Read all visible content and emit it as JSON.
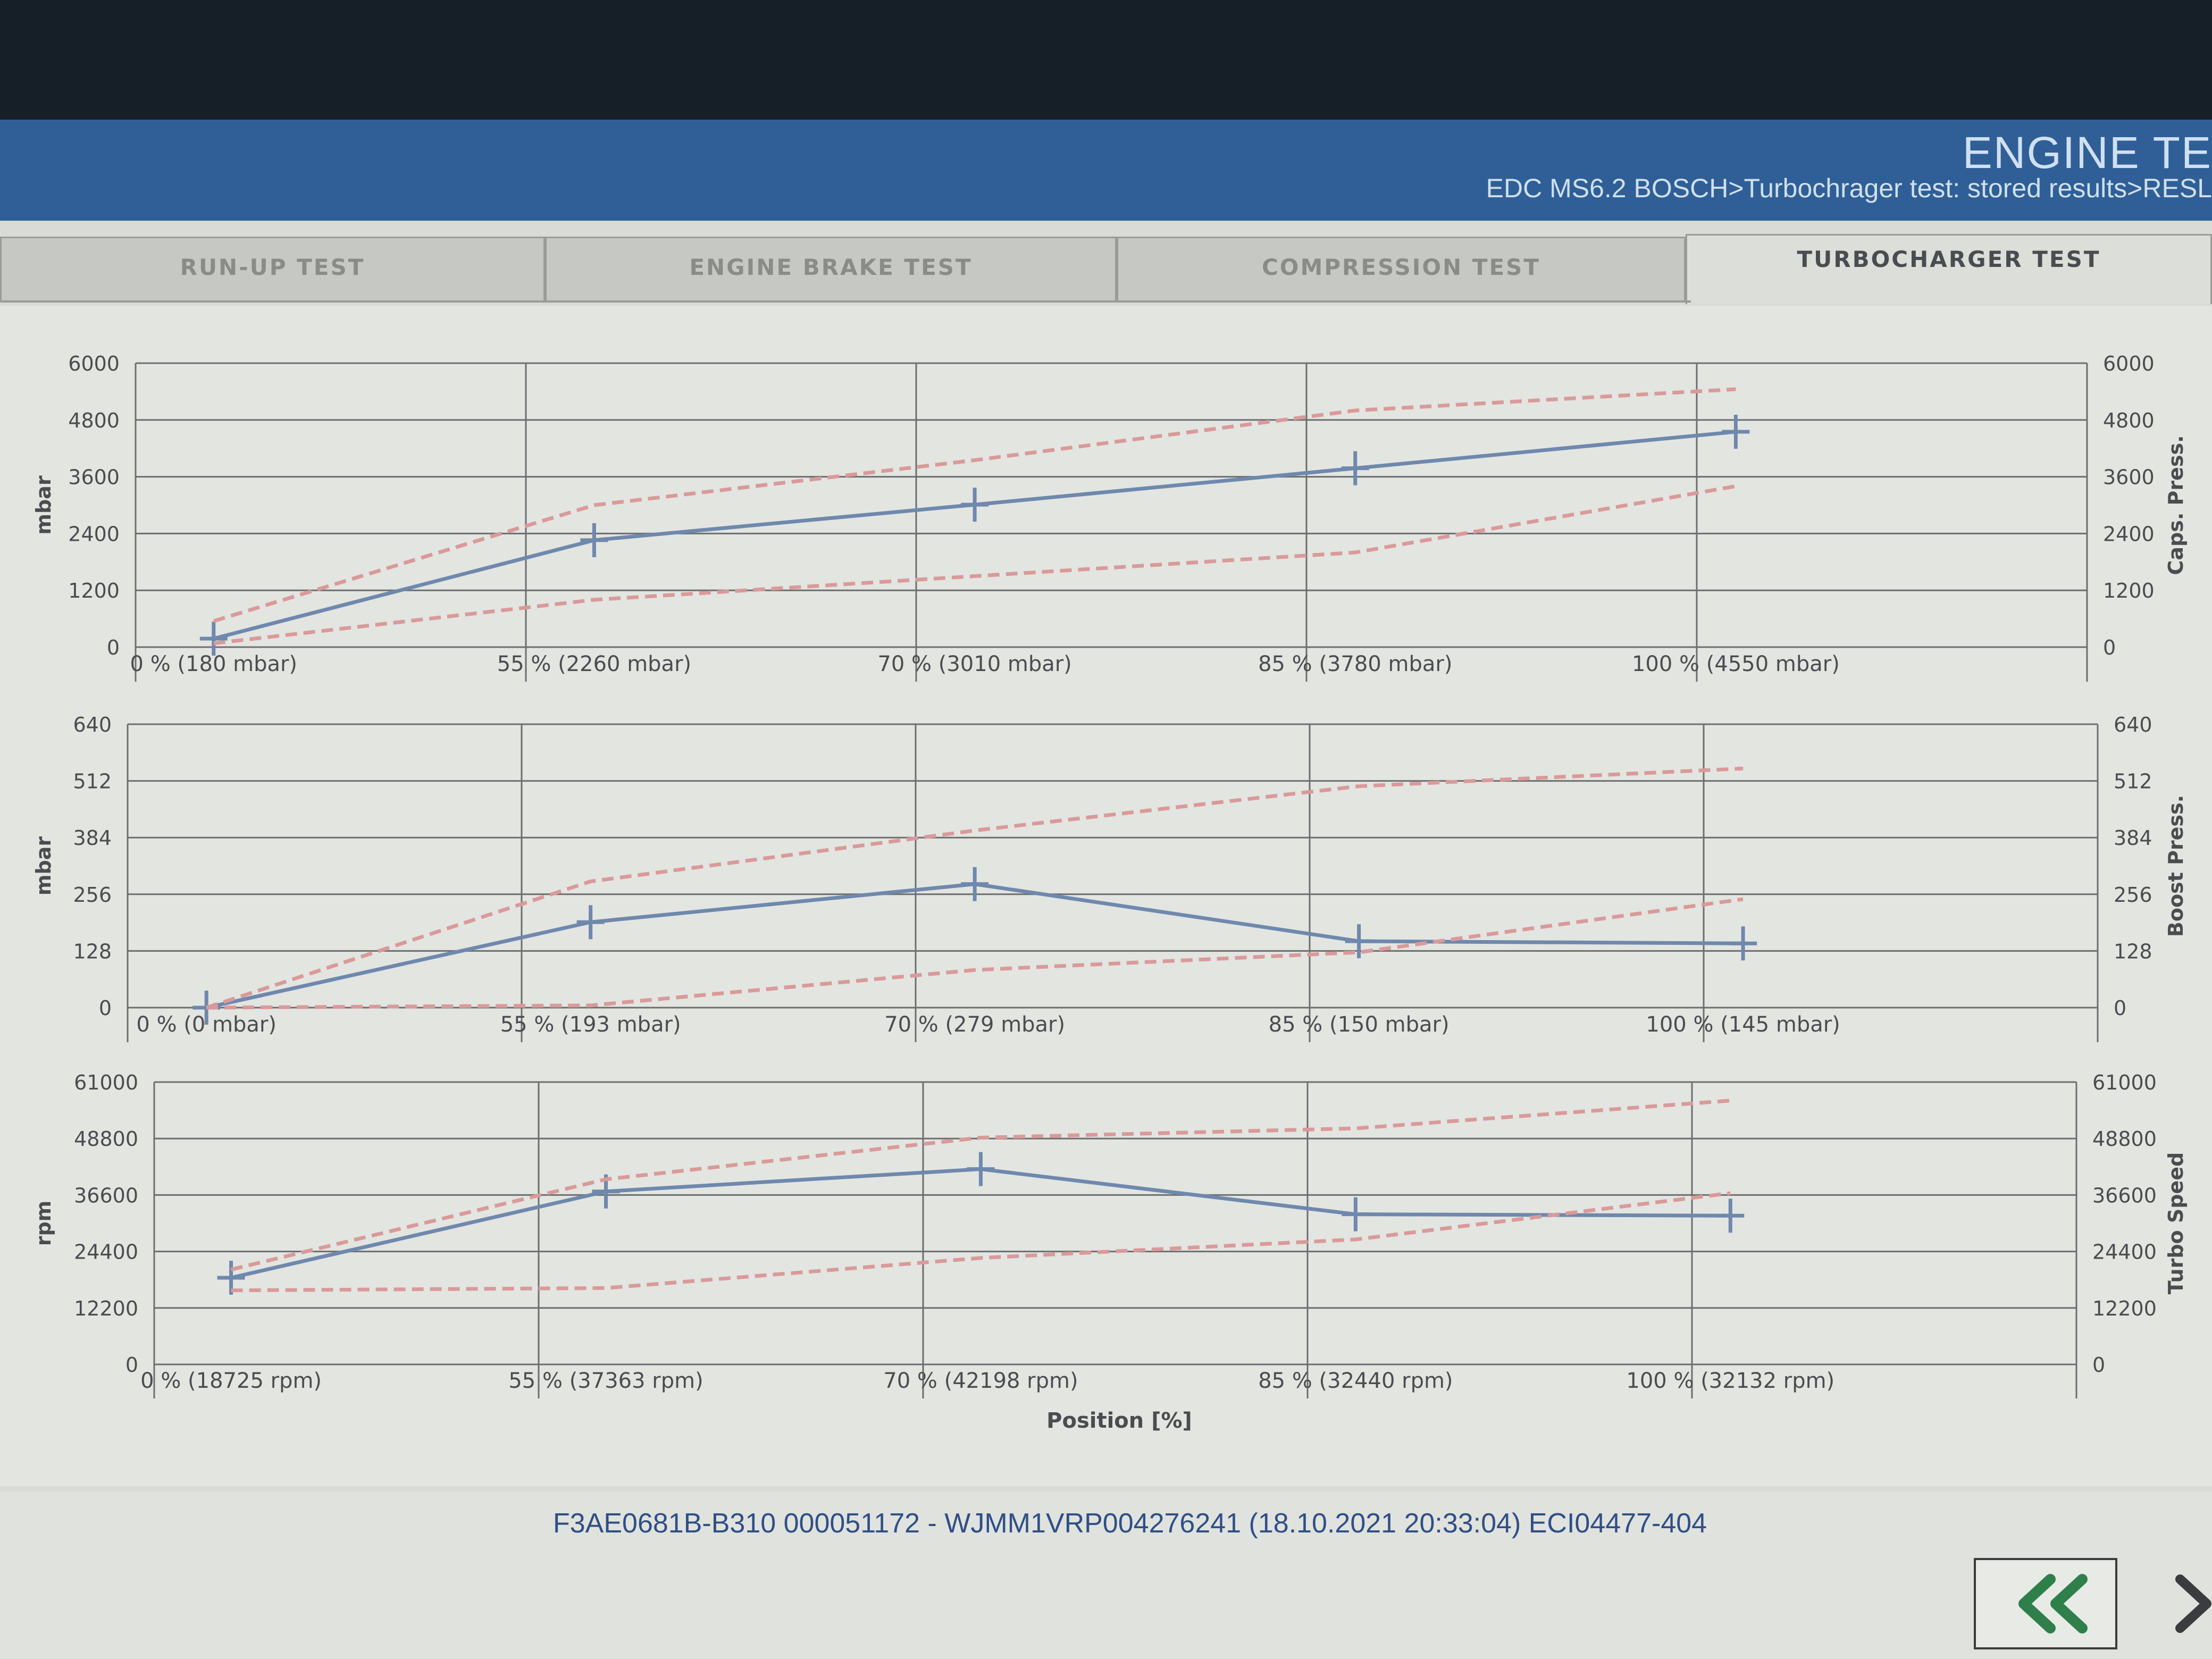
{
  "header": {
    "title": "ENGINE TE",
    "path": "EDC MS6.2 BOSCH>Turbochrager test: stored results>RESL"
  },
  "tabs": [
    {
      "label": "RUN-UP TEST",
      "active": false
    },
    {
      "label": "ENGINE BRAKE TEST",
      "active": false
    },
    {
      "label": "COMPRESSION TEST",
      "active": false
    },
    {
      "label": "TURBOCHARGER TEST",
      "active": true
    }
  ],
  "colors": {
    "measured_line": "#6f88ad",
    "limit_line": "#d99a9a",
    "grid": "#6c6e70",
    "header_bar": "#2f5f96",
    "back_arrow": "#2f7f4a"
  },
  "icons": {
    "back": "double-chevron-left-icon",
    "next": "chevron-right-icon"
  },
  "chart_data": [
    {
      "type": "line",
      "ylabel_left": "mbar",
      "ylabel_right": "Caps. Press.",
      "yticks": [
        0,
        1200,
        2400,
        3600,
        4800,
        6000
      ],
      "ylim": [
        0,
        6000
      ],
      "categories": [
        "0 % (180 mbar)",
        "55 % (2260 mbar)",
        "70 % (3010 mbar)",
        "85 % (3780 mbar)",
        "100 % (4550 mbar)"
      ],
      "x": [
        0,
        55,
        70,
        85,
        100
      ],
      "series": [
        {
          "role": "measured",
          "values": [
            180,
            2260,
            3010,
            3780,
            4550
          ]
        },
        {
          "role": "upper-limit",
          "values": [
            550,
            3000,
            3950,
            5000,
            5450
          ]
        },
        {
          "role": "lower-limit",
          "values": [
            80,
            1000,
            1500,
            2000,
            3400
          ]
        }
      ]
    },
    {
      "type": "line",
      "ylabel_left": "mbar",
      "ylabel_right": "Boost Press.",
      "yticks": [
        0,
        128,
        256,
        384,
        512,
        640
      ],
      "ylim": [
        0,
        640
      ],
      "categories": [
        "0 % (0 mbar)",
        "55 % (193 mbar)",
        "70 % (279 mbar)",
        "85 % (150 mbar)",
        "100 % (145 mbar)"
      ],
      "x": [
        0,
        55,
        70,
        85,
        100
      ],
      "series": [
        {
          "role": "measured",
          "values": [
            0,
            193,
            279,
            150,
            145
          ]
        },
        {
          "role": "upper-limit",
          "values": [
            0,
            285,
            400,
            500,
            540
          ]
        },
        {
          "role": "lower-limit",
          "values": [
            0,
            5,
            85,
            125,
            245
          ]
        }
      ]
    },
    {
      "type": "line",
      "ylabel_left": "rpm",
      "ylabel_right": "Turbo Speed",
      "xlabel": "Position [%]",
      "yticks": [
        0,
        12200,
        24400,
        36600,
        48800,
        61000
      ],
      "ylim": [
        0,
        61000
      ],
      "categories": [
        "0 % (18725 rpm)",
        "55 % (37363 rpm)",
        "70 % (42198 rpm)",
        "85 % (32440 rpm)",
        "100 % (32132 rpm)"
      ],
      "x": [
        0,
        55,
        70,
        85,
        100
      ],
      "series": [
        {
          "role": "measured",
          "values": [
            18725,
            37363,
            42198,
            32440,
            32132
          ]
        },
        {
          "role": "upper-limit",
          "values": [
            20500,
            40000,
            49000,
            51000,
            57000
          ]
        },
        {
          "role": "lower-limit",
          "values": [
            16000,
            16500,
            23000,
            27000,
            37000
          ]
        }
      ]
    }
  ],
  "footer": {
    "info": "F3AE0681B-B310 000051172 - WJMM1VRP004276241 (18.10.2021 20:33:04) ECI04477-404"
  }
}
